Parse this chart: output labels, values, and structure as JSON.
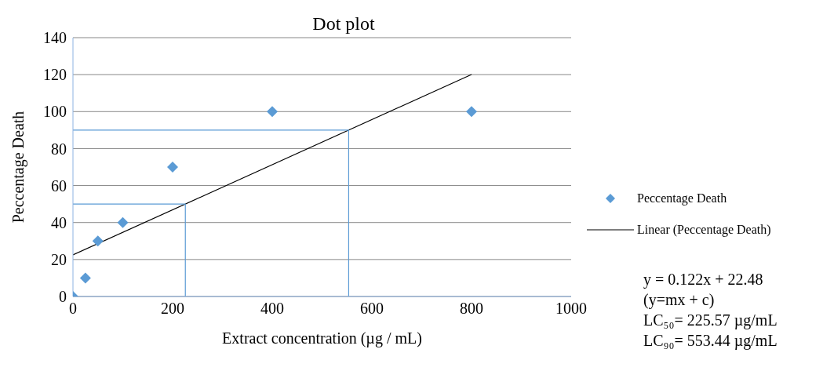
{
  "chart_data": {
    "type": "scatter",
    "title": "Dot plot",
    "xlabel": "Extract concentration (µg / mL)",
    "ylabel": "Peccentage Death",
    "xlim": [
      0,
      1000
    ],
    "xticks": [
      0,
      200,
      400,
      600,
      800,
      1000
    ],
    "ylim": [
      0,
      140
    ],
    "yticks": [
      0,
      20,
      40,
      60,
      80,
      100,
      120,
      140
    ],
    "grid": "y",
    "legend": "right",
    "series": [
      {
        "name": "Peccentage Death",
        "marker": "diamond",
        "color": "#5b9bd5",
        "x": [
          0,
          25,
          50,
          100,
          200,
          400,
          800
        ],
        "values": [
          0,
          10,
          30,
          40,
          70,
          100,
          100
        ]
      },
      {
        "name": "Linear (Peccentage Death)",
        "type": "line",
        "marker": "none",
        "line_style": "solid",
        "color": "#000000",
        "x": [
          0,
          800
        ],
        "values": [
          22.48,
          120.08
        ]
      },
      {
        "type": "line",
        "marker": "none",
        "line_style": "solid",
        "color": "#5b9bd5",
        "x": [
          0,
          225.57,
          225.57
        ],
        "values": [
          50,
          50,
          0
        ]
      },
      {
        "type": "line",
        "marker": "none",
        "line_style": "solid",
        "color": "#5b9bd5",
        "x": [
          0,
          553.44,
          553.44
        ],
        "values": [
          90,
          90,
          0
        ]
      }
    ],
    "annotations": [
      "y = 0.122x + 22.48",
      "(y=mx + c)",
      "LC₅₀= 225.57 µg/mL",
      "LC₉₀= 553.44 µg/mL"
    ]
  }
}
